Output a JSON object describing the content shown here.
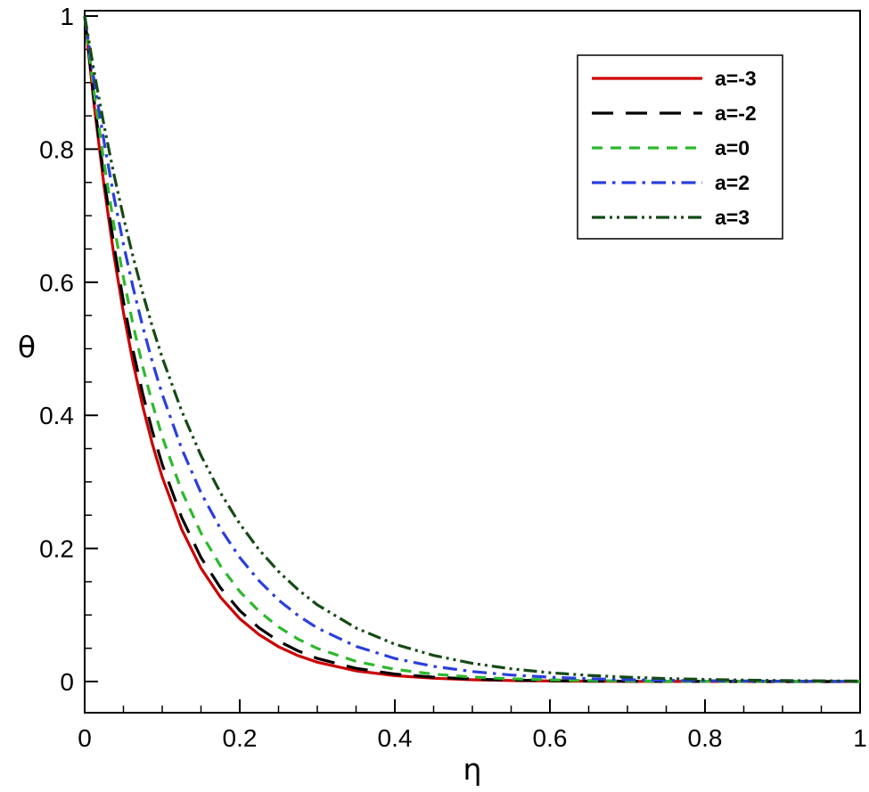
{
  "figure": {
    "background": "#ffffff",
    "frame_color": "#000000"
  },
  "chart_data": {
    "type": "line",
    "title": "",
    "xlabel": "η",
    "ylabel": "θ",
    "xlim": [
      0,
      1
    ],
    "ylim": [
      0,
      1
    ],
    "grid": false,
    "minor_tick_step": 0.05,
    "x_ticks": {
      "values": [
        0,
        0.2,
        0.4,
        0.6,
        0.8,
        1
      ],
      "labels": [
        "0",
        "0.2",
        "0.4",
        "0.6",
        "0.8",
        "1"
      ]
    },
    "y_ticks": {
      "values": [
        0,
        0.2,
        0.4,
        0.6,
        0.8,
        1
      ],
      "labels": [
        "0",
        "0.2",
        "0.4",
        "0.6",
        "0.8",
        "1"
      ]
    },
    "legend": {
      "position": "upper-right",
      "border": true
    },
    "x": [
      0,
      0.0125,
      0.025,
      0.0375,
      0.05,
      0.0625,
      0.075,
      0.0875,
      0.1,
      0.125,
      0.15,
      0.175,
      0.2,
      0.225,
      0.25,
      0.275,
      0.3,
      0.35,
      0.4,
      0.45,
      0.5,
      0.55,
      0.6,
      0.65,
      0.7,
      0.75,
      0.8,
      0.85,
      0.9,
      0.95,
      1
    ],
    "series": [
      {
        "name": "a=-3",
        "color": "#cc0000",
        "dash": "solid",
        "values": [
          1,
          0.8629,
          0.7445,
          0.6424,
          0.5543,
          0.4783,
          0.4127,
          0.3561,
          0.3073,
          0.2288,
          0.1703,
          0.1268,
          0.0944,
          0.0703,
          0.0523,
          0.039,
          0.029,
          0.0161,
          0.0089,
          0.0049,
          0.0027,
          0.0015,
          0.0008,
          0.0005,
          0.0003,
          0.0001,
          0.0001,
          0,
          0,
          0,
          0
        ]
      },
      {
        "name": "a=-2",
        "color": "#000000",
        "dash": "long-dash",
        "values": [
          1,
          0.8694,
          0.7558,
          0.657,
          0.5712,
          0.4966,
          0.4317,
          0.3753,
          0.3263,
          0.2466,
          0.1864,
          0.1409,
          0.1065,
          0.0805,
          0.0608,
          0.046,
          0.0347,
          0.0198,
          0.0113,
          0.0065,
          0.0037,
          0.0021,
          0.0012,
          0.0007,
          0.0004,
          0.0002,
          0.0001,
          0.0001,
          0,
          0,
          0
        ]
      },
      {
        "name": "a=0",
        "color": "#2db82d",
        "dash": "dash",
        "values": [
          1,
          0.8825,
          0.7788,
          0.6873,
          0.6065,
          0.5353,
          0.4724,
          0.4169,
          0.3679,
          0.2865,
          0.2231,
          0.1738,
          0.1353,
          0.1054,
          0.0821,
          0.0639,
          0.0498,
          0.0302,
          0.0183,
          0.0111,
          0.0067,
          0.0041,
          0.0025,
          0.0015,
          0.0009,
          0.0006,
          0.0003,
          0.0002,
          0.0001,
          0.0001,
          0
        ]
      },
      {
        "name": "a=2",
        "color": "#2a3fdd",
        "dash": "dash-dot",
        "values": [
          1,
          0.9003,
          0.8106,
          0.7298,
          0.657,
          0.5916,
          0.5326,
          0.4795,
          0.4317,
          0.3499,
          0.2837,
          0.2299,
          0.1864,
          0.1511,
          0.1225,
          0.0993,
          0.0805,
          0.0529,
          0.0347,
          0.0228,
          0.015,
          0.0098,
          0.0065,
          0.0043,
          0.0028,
          0.0018,
          0.0012,
          0.0008,
          0.0005,
          0.0003,
          0.0002
        ]
      },
      {
        "name": "a=3",
        "color": "#164a16",
        "dash": "dash-dot-dot",
        "values": [
          1,
          0.9139,
          0.8353,
          0.7634,
          0.6977,
          0.6376,
          0.5827,
          0.5326,
          0.4868,
          0.4066,
          0.3396,
          0.2837,
          0.2369,
          0.1979,
          0.1653,
          0.1381,
          0.1153,
          0.0805,
          0.0561,
          0.0392,
          0.0273,
          0.0191,
          0.0133,
          0.0093,
          0.0065,
          0.0045,
          0.0032,
          0.0022,
          0.0015,
          0.0011,
          0.0007
        ]
      }
    ]
  }
}
